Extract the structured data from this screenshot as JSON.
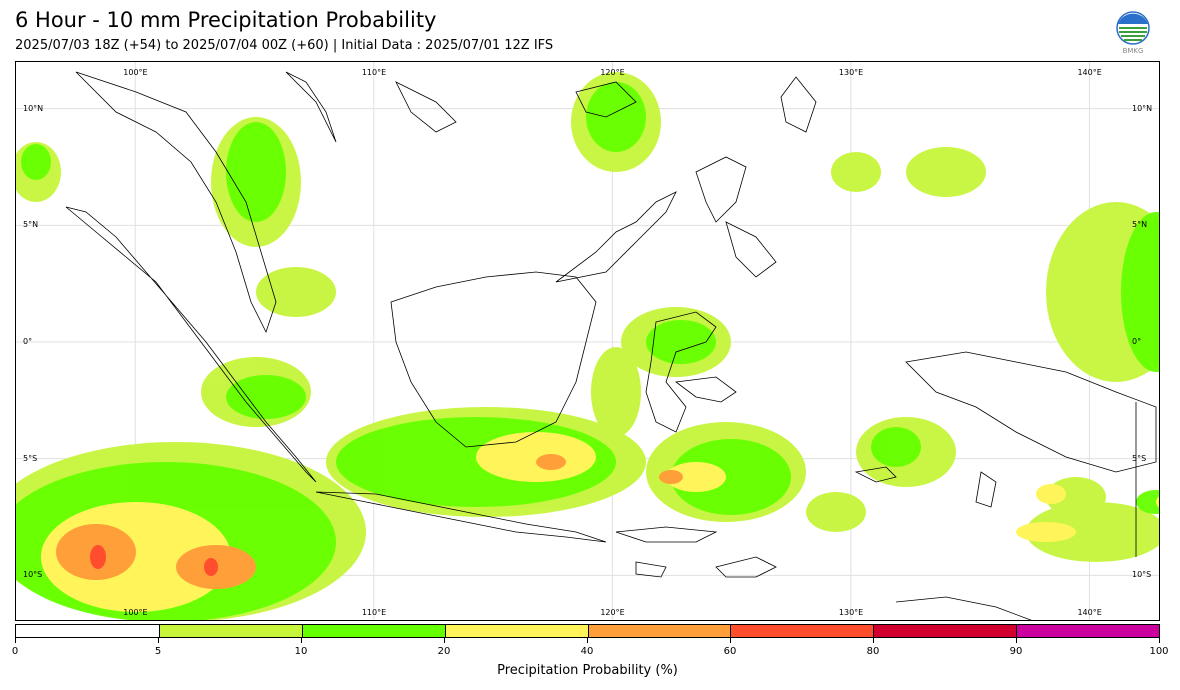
{
  "header": {
    "title": "6 Hour - 10 mm Precipitation Probability",
    "subtitle": "2025/07/03 18Z (+54) to 2025/07/04 00Z (+60) | Initial Data : 2025/07/01 12Z IFS",
    "logo_text": "BMKG"
  },
  "map": {
    "extent_lon": [
      95,
      143
    ],
    "extent_lat": [
      -12,
      12
    ],
    "lon_ticks": [
      "100°E",
      "110°E",
      "120°E",
      "130°E",
      "140°E"
    ],
    "lon_tick_values": [
      100,
      110,
      120,
      130,
      140
    ],
    "lat_ticks": [
      "10°N",
      "5°N",
      "0°",
      "5°S",
      "10°S"
    ],
    "lat_tick_values": [
      10,
      5,
      0,
      -5,
      -10
    ],
    "colors": {
      "p5_10": "#c6f53a",
      "p10_20": "#66ff00",
      "p20_40": "#fff55a",
      "p40_60": "#ff9f3a",
      "p60_80": "#ff4d2e",
      "coastline": "#000000",
      "grid": "#e0e0e0"
    }
  },
  "colorbar": {
    "label": "Precipitation Probability (%)",
    "bounds": [
      0,
      5,
      10,
      20,
      40,
      60,
      80,
      90,
      100
    ],
    "tick_labels": [
      "0",
      "5",
      "10",
      "20",
      "40",
      "60",
      "80",
      "90",
      "100"
    ],
    "colors": [
      "#ffffff",
      "#c6f53a",
      "#66ff00",
      "#fff55a",
      "#ff9f3a",
      "#ff4d2e",
      "#d1002e",
      "#cc009f"
    ]
  }
}
